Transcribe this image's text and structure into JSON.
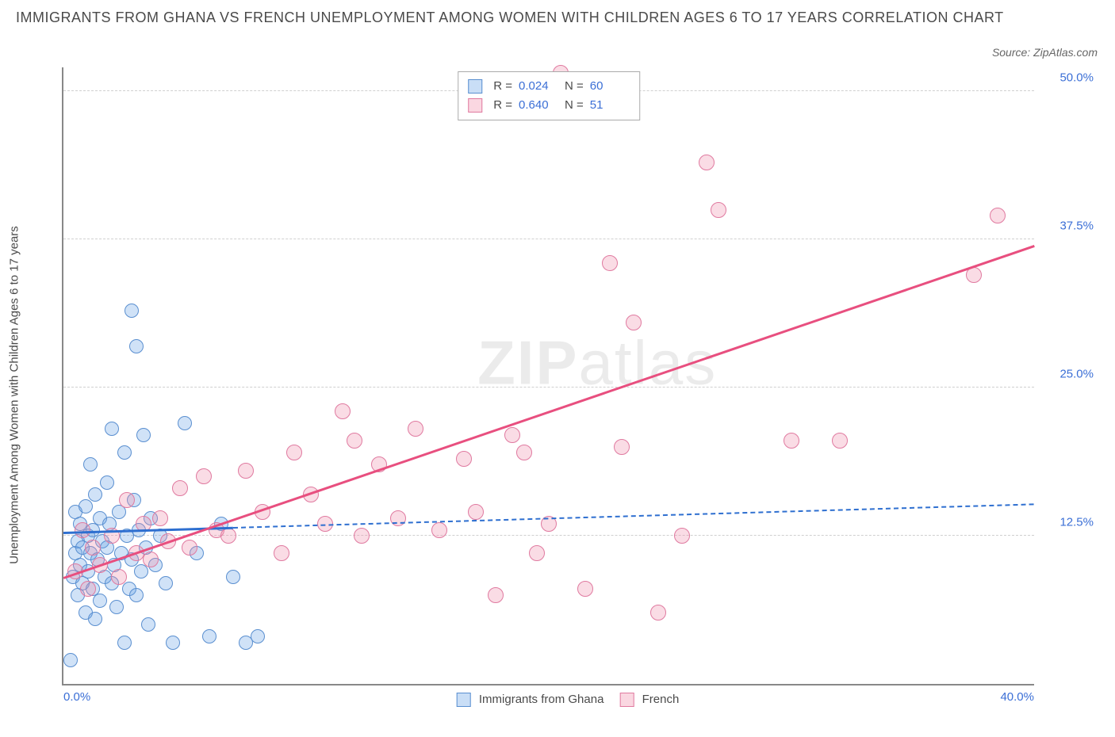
{
  "title": "IMMIGRANTS FROM GHANA VS FRENCH UNEMPLOYMENT AMONG WOMEN WITH CHILDREN AGES 6 TO 17 YEARS CORRELATION CHART",
  "source_label": "Source: ZipAtlas.com",
  "y_axis_label": "Unemployment Among Women with Children Ages 6 to 17 years",
  "watermark": {
    "bold": "ZIP",
    "light": "atlas"
  },
  "chart": {
    "type": "scatter",
    "background_color": "#ffffff",
    "grid_color": "#d0d0d0",
    "axis_color": "#888888",
    "tick_label_color": "#3b6fd6",
    "xlim": [
      0,
      40
    ],
    "ylim": [
      0,
      52
    ],
    "x_ticks": [
      {
        "value": 0,
        "label": "0.0%"
      },
      {
        "value": 40,
        "label": "40.0%"
      }
    ],
    "y_ticks": [
      {
        "value": 12.5,
        "label": "12.5%"
      },
      {
        "value": 25.0,
        "label": "25.0%"
      },
      {
        "value": 37.5,
        "label": "37.5%"
      },
      {
        "value": 50.0,
        "label": "50.0%"
      }
    ],
    "series": [
      {
        "name": "Immigrants from Ghana",
        "swatch_fill": "rgba(100,160,230,0.35)",
        "swatch_border": "#5a8fd0",
        "point_fill": "rgba(100,160,230,0.30)",
        "point_border": "#5a8fd0",
        "point_radius": 9,
        "trend_color": "#2e6fd0",
        "trend_solid_until_x": 7,
        "trend_start": {
          "x": 0,
          "y": 12.8
        },
        "trend_end": {
          "x": 40,
          "y": 15.2
        },
        "stats": {
          "R": "0.024",
          "N": "60"
        },
        "points": [
          {
            "x": 0.3,
            "y": 2.0
          },
          {
            "x": 0.4,
            "y": 9.0
          },
          {
            "x": 0.5,
            "y": 11.0
          },
          {
            "x": 0.5,
            "y": 14.5
          },
          {
            "x": 0.6,
            "y": 7.5
          },
          {
            "x": 0.6,
            "y": 12.0
          },
          {
            "x": 0.7,
            "y": 10.0
          },
          {
            "x": 0.7,
            "y": 13.5
          },
          {
            "x": 0.8,
            "y": 8.5
          },
          {
            "x": 0.8,
            "y": 11.5
          },
          {
            "x": 0.9,
            "y": 6.0
          },
          {
            "x": 0.9,
            "y": 15.0
          },
          {
            "x": 1.0,
            "y": 9.5
          },
          {
            "x": 1.0,
            "y": 12.5
          },
          {
            "x": 1.1,
            "y": 18.5
          },
          {
            "x": 1.1,
            "y": 11.0
          },
          {
            "x": 1.2,
            "y": 8.0
          },
          {
            "x": 1.2,
            "y": 13.0
          },
          {
            "x": 1.3,
            "y": 16.0
          },
          {
            "x": 1.3,
            "y": 5.5
          },
          {
            "x": 1.4,
            "y": 10.5
          },
          {
            "x": 1.5,
            "y": 14.0
          },
          {
            "x": 1.5,
            "y": 7.0
          },
          {
            "x": 1.6,
            "y": 12.0
          },
          {
            "x": 1.7,
            "y": 9.0
          },
          {
            "x": 1.8,
            "y": 11.5
          },
          {
            "x": 1.8,
            "y": 17.0
          },
          {
            "x": 1.9,
            "y": 13.5
          },
          {
            "x": 2.0,
            "y": 21.5
          },
          {
            "x": 2.0,
            "y": 8.5
          },
          {
            "x": 2.1,
            "y": 10.0
          },
          {
            "x": 2.2,
            "y": 6.5
          },
          {
            "x": 2.3,
            "y": 14.5
          },
          {
            "x": 2.4,
            "y": 11.0
          },
          {
            "x": 2.5,
            "y": 3.5
          },
          {
            "x": 2.5,
            "y": 19.5
          },
          {
            "x": 2.6,
            "y": 12.5
          },
          {
            "x": 2.7,
            "y": 8.0
          },
          {
            "x": 2.8,
            "y": 10.5
          },
          {
            "x": 2.8,
            "y": 31.5
          },
          {
            "x": 2.9,
            "y": 15.5
          },
          {
            "x": 3.0,
            "y": 7.5
          },
          {
            "x": 3.0,
            "y": 28.5
          },
          {
            "x": 3.1,
            "y": 13.0
          },
          {
            "x": 3.2,
            "y": 9.5
          },
          {
            "x": 3.3,
            "y": 21.0
          },
          {
            "x": 3.4,
            "y": 11.5
          },
          {
            "x": 3.5,
            "y": 5.0
          },
          {
            "x": 3.6,
            "y": 14.0
          },
          {
            "x": 3.8,
            "y": 10.0
          },
          {
            "x": 4.0,
            "y": 12.5
          },
          {
            "x": 4.2,
            "y": 8.5
          },
          {
            "x": 4.5,
            "y": 3.5
          },
          {
            "x": 5.0,
            "y": 22.0
          },
          {
            "x": 5.5,
            "y": 11.0
          },
          {
            "x": 6.0,
            "y": 4.0
          },
          {
            "x": 6.5,
            "y": 13.5
          },
          {
            "x": 7.0,
            "y": 9.0
          },
          {
            "x": 7.5,
            "y": 3.5
          },
          {
            "x": 8.0,
            "y": 4.0
          }
        ]
      },
      {
        "name": "French",
        "swatch_fill": "rgba(240,140,170,0.35)",
        "swatch_border": "#e07aa0",
        "point_fill": "rgba(240,140,170,0.30)",
        "point_border": "#e07aa0",
        "point_radius": 10,
        "trend_color": "#e84f7f",
        "trend_solid_until_x": 40,
        "trend_start": {
          "x": 0,
          "y": 9.0
        },
        "trend_end": {
          "x": 40,
          "y": 37.0
        },
        "stats": {
          "R": "0.640",
          "N": "51"
        },
        "points": [
          {
            "x": 0.5,
            "y": 9.5
          },
          {
            "x": 0.8,
            "y": 13.0
          },
          {
            "x": 1.0,
            "y": 8.0
          },
          {
            "x": 1.2,
            "y": 11.5
          },
          {
            "x": 1.5,
            "y": 10.0
          },
          {
            "x": 2.0,
            "y": 12.5
          },
          {
            "x": 2.3,
            "y": 9.0
          },
          {
            "x": 2.6,
            "y": 15.5
          },
          {
            "x": 3.0,
            "y": 11.0
          },
          {
            "x": 3.3,
            "y": 13.5
          },
          {
            "x": 3.6,
            "y": 10.5
          },
          {
            "x": 4.0,
            "y": 14.0
          },
          {
            "x": 4.3,
            "y": 12.0
          },
          {
            "x": 4.8,
            "y": 16.5
          },
          {
            "x": 5.2,
            "y": 11.5
          },
          {
            "x": 5.8,
            "y": 17.5
          },
          {
            "x": 6.3,
            "y": 13.0
          },
          {
            "x": 6.8,
            "y": 12.5
          },
          {
            "x": 7.5,
            "y": 18.0
          },
          {
            "x": 8.2,
            "y": 14.5
          },
          {
            "x": 9.0,
            "y": 11.0
          },
          {
            "x": 9.5,
            "y": 19.5
          },
          {
            "x": 10.2,
            "y": 16.0
          },
          {
            "x": 10.8,
            "y": 13.5
          },
          {
            "x": 11.5,
            "y": 23.0
          },
          {
            "x": 12.0,
            "y": 20.5
          },
          {
            "x": 12.3,
            "y": 12.5
          },
          {
            "x": 13.0,
            "y": 18.5
          },
          {
            "x": 13.8,
            "y": 14.0
          },
          {
            "x": 14.5,
            "y": 21.5
          },
          {
            "x": 15.5,
            "y": 13.0
          },
          {
            "x": 16.5,
            "y": 19.0
          },
          {
            "x": 17.0,
            "y": 14.5
          },
          {
            "x": 17.8,
            "y": 7.5
          },
          {
            "x": 18.5,
            "y": 21.0
          },
          {
            "x": 19.0,
            "y": 19.5
          },
          {
            "x": 20.0,
            "y": 13.5
          },
          {
            "x": 20.5,
            "y": 51.5
          },
          {
            "x": 21.5,
            "y": 8.0
          },
          {
            "x": 22.5,
            "y": 35.5
          },
          {
            "x": 23.0,
            "y": 20.0
          },
          {
            "x": 23.5,
            "y": 30.5
          },
          {
            "x": 24.5,
            "y": 6.0
          },
          {
            "x": 25.5,
            "y": 12.5
          },
          {
            "x": 26.5,
            "y": 44.0
          },
          {
            "x": 27.0,
            "y": 40.0
          },
          {
            "x": 30.0,
            "y": 20.5
          },
          {
            "x": 32.0,
            "y": 20.5
          },
          {
            "x": 37.5,
            "y": 34.5
          },
          {
            "x": 38.5,
            "y": 39.5
          },
          {
            "x": 19.5,
            "y": 11.0
          }
        ]
      }
    ],
    "bottom_legend": [
      {
        "label": "Immigrants from Ghana",
        "series_index": 0
      },
      {
        "label": "French",
        "series_index": 1
      }
    ]
  }
}
